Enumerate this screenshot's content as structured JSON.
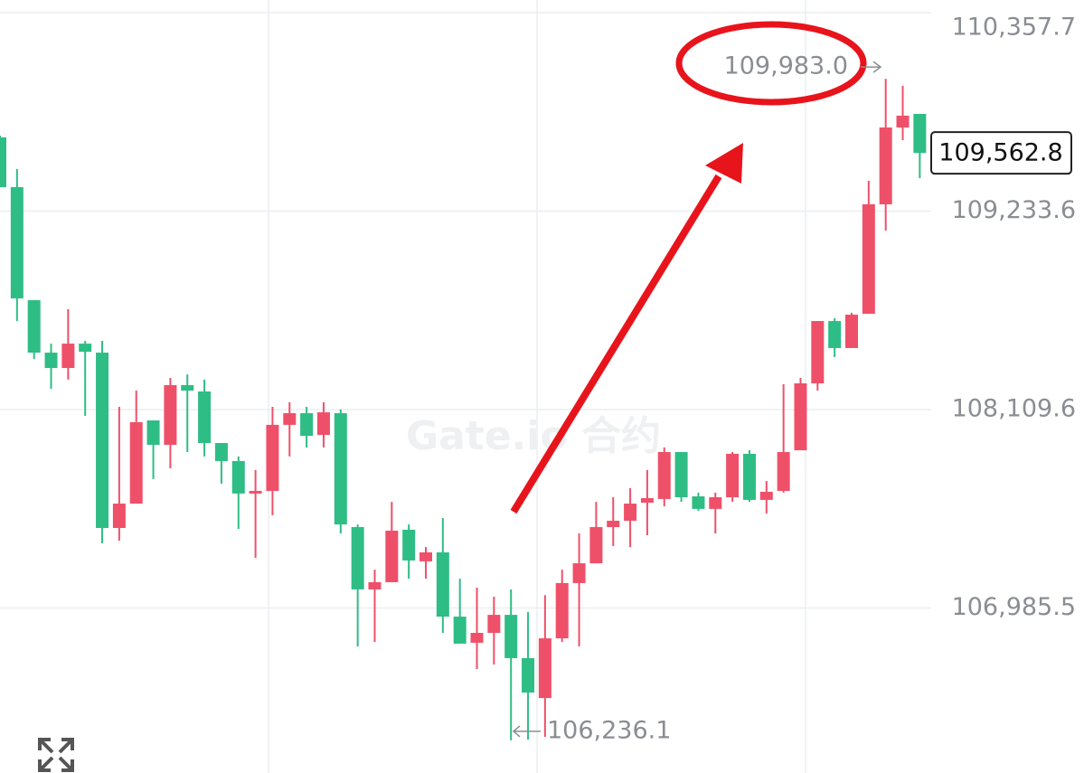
{
  "chart_data": {
    "type": "candlestick",
    "watermark": "Gate.io 合约",
    "up_color": "#ef5069",
    "down_color": "#2ebd85",
    "ylim": [
      106051.4,
      110429
    ],
    "yticks": [
      {
        "value": 110357.7,
        "label": "110,357.7"
      },
      {
        "value": 109233.6,
        "label": "109,233.6"
      },
      {
        "value": 108109.6,
        "label": "108,109.6"
      },
      {
        "value": 106985.5,
        "label": "106,985.5"
      }
    ],
    "grid": true,
    "open": [
      109651,
      109369,
      108729,
      108432,
      108345,
      108483,
      108432,
      107439,
      107577,
      108048,
      107910,
      108248,
      108212,
      107920,
      107818,
      107634,
      107649,
      108023,
      108089,
      107966,
      108089,
      107444,
      107091,
      107132,
      107429,
      107250,
      107301,
      106937,
      106789,
      106845,
      106947,
      106702,
      106476,
      106814,
      107127,
      107239,
      107444,
      107480,
      107582,
      107603,
      107869,
      107618,
      107547,
      107613,
      107859,
      107598,
      107649,
      107879,
      108258,
      108611,
      108458,
      108652,
      109272,
      109707,
      109784
    ],
    "high": [
      109661,
      109472,
      108729,
      108483,
      108678,
      108499,
      108499,
      108125,
      108217,
      108048,
      108289,
      108309,
      108279,
      107920,
      107844,
      107767,
      108125,
      108151,
      108125,
      108151,
      108110,
      107459,
      107203,
      107587,
      107459,
      107331,
      107495,
      107152,
      107101,
      107050,
      107091,
      106963,
      107059,
      107203,
      107408,
      107587,
      107613,
      107664,
      107767,
      107895,
      107869,
      107639,
      107639,
      107869,
      107879,
      107705,
      108253,
      108289,
      108611,
      108627,
      108657,
      109405,
      109983,
      109943,
      109784
    ],
    "low": [
      109369,
      108611,
      108396,
      108227,
      108279,
      108074,
      107352,
      107367,
      107577,
      107716,
      107777,
      107869,
      107844,
      107690,
      107434,
      107270,
      107511,
      107844,
      107895,
      107895,
      107408,
      106768,
      106794,
      107132,
      107152,
      107152,
      106845,
      106784,
      106640,
      106666,
      106236.1,
      106240,
      106256,
      106794,
      106768,
      107239,
      107337,
      107331,
      107398,
      107562,
      107587,
      107536,
      107408,
      107587,
      107587,
      107521,
      107639,
      107879,
      108217,
      108407,
      108458,
      108652,
      109123,
      109635,
      109420
    ],
    "close": [
      109369,
      108739,
      108432,
      108345,
      108483,
      108437,
      107439,
      107577,
      108038,
      107910,
      108248,
      108217,
      107920,
      107818,
      107634,
      107649,
      108023,
      108089,
      107961,
      108094,
      107459,
      107091,
      107132,
      107424,
      107255,
      107301,
      106937,
      106784,
      106845,
      106947,
      106702,
      106507,
      106814,
      107127,
      107239,
      107444,
      107480,
      107577,
      107608,
      107869,
      107613,
      107547,
      107613,
      107859,
      107598,
      107644,
      107869,
      108258,
      108611,
      108458,
      108647,
      109272,
      109707,
      109774,
      109562.8
    ],
    "high_marker": {
      "value": 109983,
      "label": "109,983.0"
    },
    "low_marker": {
      "value": 106236.1,
      "label": "106,236.1"
    },
    "last_price": {
      "value": 109562.8,
      "label": "109,562.8"
    }
  }
}
